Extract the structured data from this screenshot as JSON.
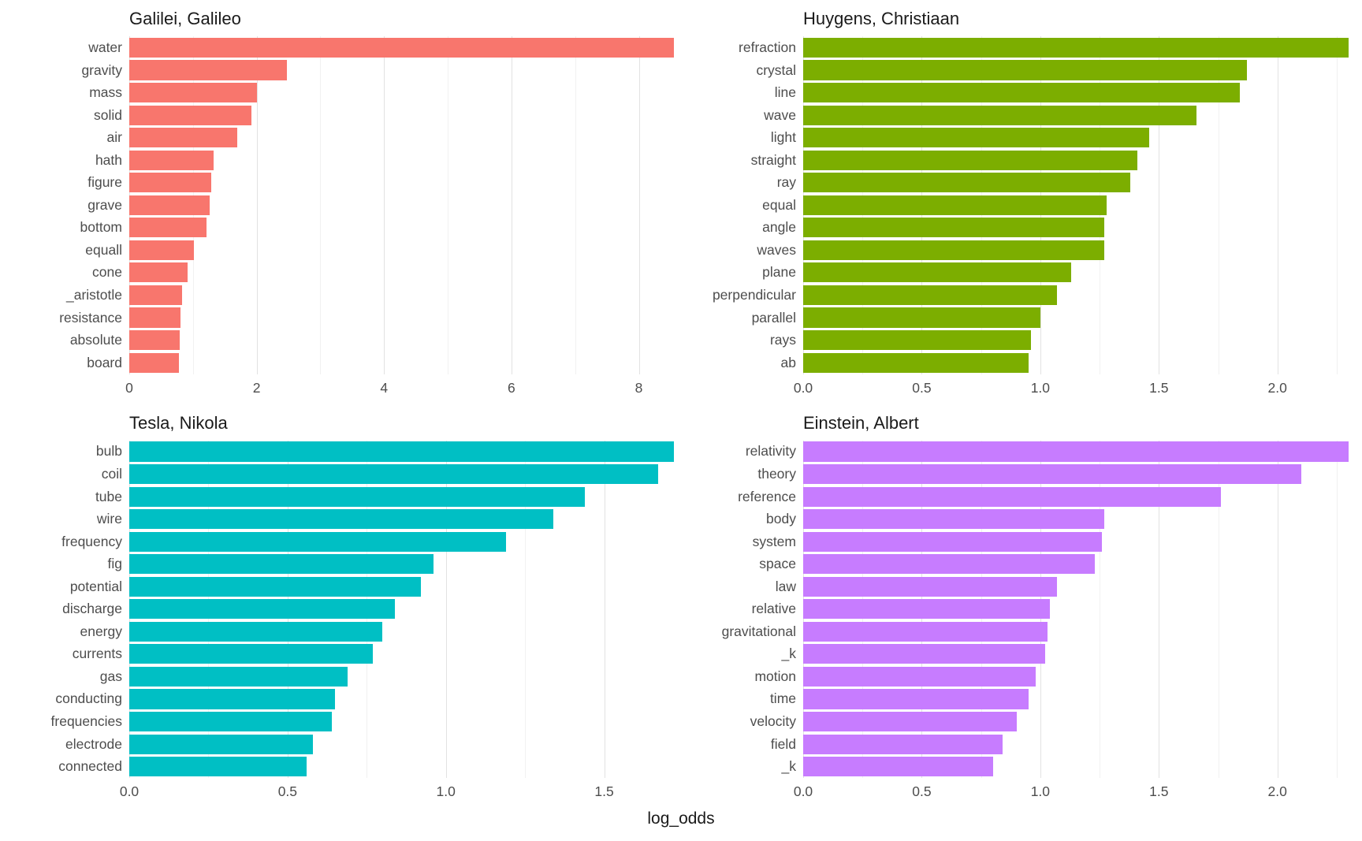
{
  "figure": {
    "xlabel": "log_odds",
    "background": "#ffffff",
    "gridline_major_color": "#e2e2e2",
    "gridline_minor_color": "#f1f1f1",
    "text_color": "#4d4d4d",
    "title_color": "#1a1a1a"
  },
  "chart_data": [
    {
      "type": "bar",
      "orientation": "horizontal",
      "title": "Galilei, Galileo",
      "color": "#F8766D",
      "xlim": [
        0,
        8.6
      ],
      "ticks": [
        0,
        2,
        4,
        6,
        8
      ],
      "tick_labels": [
        "0",
        "2",
        "4",
        "6",
        "8"
      ],
      "categories": [
        "water",
        "gravity",
        "mass",
        "solid",
        "air",
        "hath",
        "figure",
        "grave",
        "bottom",
        "equall",
        "cone",
        "_aristotle",
        "resistance",
        "absolute",
        "board"
      ],
      "values": [
        8.55,
        2.48,
        2.0,
        1.92,
        1.7,
        1.32,
        1.29,
        1.26,
        1.21,
        1.01,
        0.91,
        0.83,
        0.8,
        0.79,
        0.78
      ]
    },
    {
      "type": "bar",
      "orientation": "horizontal",
      "title": "Huygens, Christiaan",
      "color": "#7CAE00",
      "xlim": [
        0,
        2.31
      ],
      "ticks": [
        0,
        0.5,
        1.0,
        1.5,
        2.0
      ],
      "tick_labels": [
        "0.0",
        "0.5",
        "1.0",
        "1.5",
        "2.0"
      ],
      "categories": [
        "refraction",
        "crystal",
        "line",
        "wave",
        "light",
        "straight",
        "ray",
        "equal",
        "angle",
        "waves",
        "plane",
        "perpendicular",
        "parallel",
        "rays",
        "ab"
      ],
      "values": [
        2.3,
        1.87,
        1.84,
        1.66,
        1.46,
        1.41,
        1.38,
        1.28,
        1.27,
        1.27,
        1.13,
        1.07,
        1.0,
        0.96,
        0.95
      ]
    },
    {
      "type": "bar",
      "orientation": "horizontal",
      "title": "Tesla, Nikola",
      "color": "#00BFC4",
      "xlim": [
        0,
        1.73
      ],
      "ticks": [
        0,
        0.5,
        1.0,
        1.5
      ],
      "tick_labels": [
        "0.0",
        "0.5",
        "1.0",
        "1.5"
      ],
      "categories": [
        "bulb",
        "coil",
        "tube",
        "wire",
        "frequency",
        "fig",
        "potential",
        "discharge",
        "energy",
        "currents",
        "gas",
        "conducting",
        "frequencies",
        "electrode",
        "connected"
      ],
      "values": [
        1.72,
        1.67,
        1.44,
        1.34,
        1.19,
        0.96,
        0.92,
        0.84,
        0.8,
        0.77,
        0.69,
        0.65,
        0.64,
        0.58,
        0.56
      ]
    },
    {
      "type": "bar",
      "orientation": "horizontal",
      "title": "Einstein, Albert",
      "color": "#C77CFF",
      "xlim": [
        0,
        2.31
      ],
      "ticks": [
        0,
        0.5,
        1.0,
        1.5,
        2.0
      ],
      "tick_labels": [
        "0.0",
        "0.5",
        "1.0",
        "1.5",
        "2.0"
      ],
      "categories": [
        "relativity",
        "theory",
        "reference",
        "body",
        "system",
        "space",
        "law",
        "relative",
        "gravitational",
        "_k",
        "motion",
        "time",
        "velocity",
        "field",
        "_k"
      ],
      "values": [
        2.3,
        2.1,
        1.76,
        1.27,
        1.26,
        1.23,
        1.07,
        1.04,
        1.03,
        1.02,
        0.98,
        0.95,
        0.9,
        0.84,
        0.8
      ]
    }
  ]
}
